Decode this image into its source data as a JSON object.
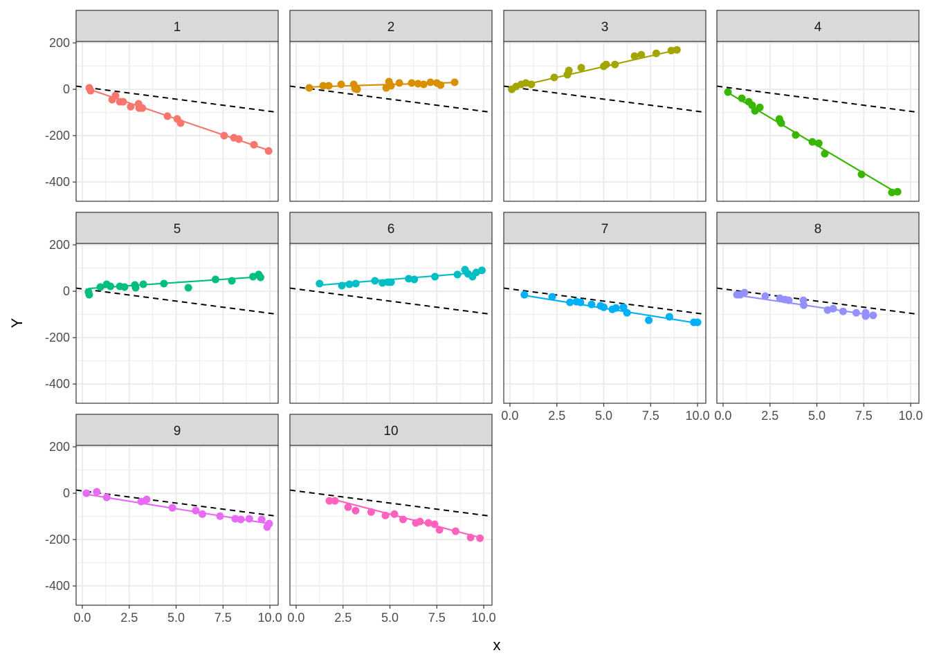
{
  "chart_data": {
    "type": "scatter",
    "xlabel": "x",
    "ylabel": "Y",
    "xlim": [
      -0.33,
      10.44
    ],
    "ylim": [
      -483,
      206
    ],
    "xticks": [
      "0.0",
      "2.5",
      "5.0",
      "7.5",
      "10.0"
    ],
    "xtick_values": [
      0,
      2.5,
      5,
      7.5,
      10
    ],
    "yticks": [
      "200",
      "0",
      "-200",
      "-400"
    ],
    "ytick_values": [
      200,
      0,
      -200,
      -400
    ],
    "grid": true,
    "reference_line": {
      "style": "dashed",
      "color": "#000000",
      "intercept": 10,
      "slope": -10.5
    },
    "panels": [
      {
        "label": "1",
        "color": "#F8766D",
        "fit": {
          "intercept": 10,
          "slope": -27.5
        },
        "points": [
          [
            0.37,
            6
          ],
          [
            0.44,
            -6
          ],
          [
            1.59,
            -45
          ],
          [
            1.77,
            -27
          ],
          [
            2.0,
            -54
          ],
          [
            2.18,
            -54
          ],
          [
            2.58,
            -75
          ],
          [
            3.0,
            -63
          ],
          [
            3.03,
            -81
          ],
          [
            3.2,
            -81
          ],
          [
            4.54,
            -116
          ],
          [
            5.06,
            -128
          ],
          [
            5.24,
            -146
          ],
          [
            7.56,
            -200
          ],
          [
            8.08,
            -209
          ],
          [
            8.34,
            -215
          ],
          [
            9.15,
            -239
          ],
          [
            9.93,
            -266
          ]
        ]
      },
      {
        "label": "2",
        "color": "#D89000",
        "fit": {
          "intercept": 8,
          "slope": 2.5
        },
        "points": [
          [
            0.7,
            6
          ],
          [
            1.44,
            15
          ],
          [
            1.74,
            15
          ],
          [
            2.4,
            21
          ],
          [
            3.07,
            21
          ],
          [
            3.14,
            3
          ],
          [
            3.25,
            0
          ],
          [
            4.8,
            6
          ],
          [
            4.95,
            33
          ],
          [
            5.06,
            15
          ],
          [
            5.5,
            27
          ],
          [
            6.16,
            27
          ],
          [
            6.5,
            24
          ],
          [
            6.8,
            21
          ],
          [
            7.16,
            30
          ],
          [
            7.5,
            27
          ],
          [
            7.7,
            18
          ],
          [
            8.45,
            30
          ]
        ]
      },
      {
        "label": "3",
        "color": "#A3A500",
        "fit": {
          "intercept": 5,
          "slope": 18.5
        },
        "points": [
          [
            0.1,
            0
          ],
          [
            0.33,
            12
          ],
          [
            0.6,
            21
          ],
          [
            0.85,
            27
          ],
          [
            1.14,
            21
          ],
          [
            2.36,
            51
          ],
          [
            3.06,
            63
          ],
          [
            3.14,
            81
          ],
          [
            3.8,
            93
          ],
          [
            5.0,
            99
          ],
          [
            5.13,
            107
          ],
          [
            5.6,
            107
          ],
          [
            6.64,
            143
          ],
          [
            7.0,
            149
          ],
          [
            7.8,
            155
          ],
          [
            8.6,
            167
          ],
          [
            8.9,
            170
          ]
        ]
      },
      {
        "label": "4",
        "color": "#39B600",
        "fit": {
          "intercept": -2,
          "slope": -48
        },
        "points": [
          [
            0.26,
            -12
          ],
          [
            1.0,
            -39
          ],
          [
            1.37,
            -54
          ],
          [
            1.55,
            -69
          ],
          [
            1.7,
            -93
          ],
          [
            1.96,
            -78
          ],
          [
            3.0,
            -128
          ],
          [
            3.05,
            -140
          ],
          [
            3.1,
            -146
          ],
          [
            3.87,
            -197
          ],
          [
            4.76,
            -227
          ],
          [
            5.1,
            -233
          ],
          [
            5.42,
            -278
          ],
          [
            7.38,
            -367
          ],
          [
            9.0,
            -445
          ],
          [
            9.3,
            -442
          ]
        ]
      },
      {
        "label": "5",
        "color": "#00BF7D",
        "fit": {
          "intercept": 10,
          "slope": 5.5
        },
        "points": [
          [
            0.33,
            -3
          ],
          [
            0.37,
            -15
          ],
          [
            0.96,
            18
          ],
          [
            1.3,
            30
          ],
          [
            1.5,
            21
          ],
          [
            2.0,
            21
          ],
          [
            2.25,
            18
          ],
          [
            2.8,
            27
          ],
          [
            2.84,
            15
          ],
          [
            3.25,
            30
          ],
          [
            4.35,
            33
          ],
          [
            5.65,
            15
          ],
          [
            7.1,
            51
          ],
          [
            7.97,
            45
          ],
          [
            9.1,
            63
          ],
          [
            9.4,
            72
          ],
          [
            9.5,
            60
          ]
        ]
      },
      {
        "label": "6",
        "color": "#00BFC4",
        "fit": {
          "intercept": 18,
          "slope": 6.5
        },
        "points": [
          [
            1.25,
            33
          ],
          [
            2.44,
            24
          ],
          [
            2.84,
            30
          ],
          [
            3.18,
            33
          ],
          [
            4.2,
            45
          ],
          [
            4.6,
            36
          ],
          [
            4.9,
            39
          ],
          [
            5.06,
            39
          ],
          [
            6.0,
            54
          ],
          [
            6.3,
            51
          ],
          [
            7.4,
            63
          ],
          [
            8.6,
            72
          ],
          [
            9.0,
            93
          ],
          [
            9.16,
            75
          ],
          [
            9.4,
            63
          ],
          [
            9.6,
            81
          ],
          [
            9.9,
            90
          ]
        ]
      },
      {
        "label": "7",
        "color": "#00B0F6",
        "fit": {
          "intercept": -8,
          "slope": -13
        },
        "points": [
          [
            0.77,
            -15
          ],
          [
            2.25,
            -24
          ],
          [
            3.2,
            -48
          ],
          [
            3.54,
            -45
          ],
          [
            3.76,
            -48
          ],
          [
            4.35,
            -57
          ],
          [
            4.83,
            -63
          ],
          [
            5.0,
            -69
          ],
          [
            5.46,
            -78
          ],
          [
            5.65,
            -72
          ],
          [
            6.05,
            -69
          ],
          [
            6.24,
            -93
          ],
          [
            7.4,
            -125
          ],
          [
            8.5,
            -110
          ],
          [
            9.8,
            -134
          ],
          [
            10.0,
            -134
          ]
        ]
      },
      {
        "label": "8",
        "color": "#9590FF",
        "fit": {
          "intercept": -8,
          "slope": -12
        },
        "points": [
          [
            0.74,
            -15
          ],
          [
            0.92,
            -15
          ],
          [
            1.14,
            -6
          ],
          [
            2.25,
            -21
          ],
          [
            3.03,
            -30
          ],
          [
            3.3,
            -36
          ],
          [
            3.5,
            -39
          ],
          [
            4.28,
            -39
          ],
          [
            4.3,
            -60
          ],
          [
            5.57,
            -81
          ],
          [
            5.87,
            -75
          ],
          [
            6.4,
            -87
          ],
          [
            7.1,
            -93
          ],
          [
            7.6,
            -93
          ],
          [
            7.6,
            -107
          ],
          [
            8.0,
            -104
          ]
        ]
      },
      {
        "label": "9",
        "color": "#E76BF3",
        "fit": {
          "intercept": -2,
          "slope": -13
        },
        "points": [
          [
            0.22,
            0
          ],
          [
            0.77,
            6
          ],
          [
            1.3,
            -18
          ],
          [
            3.14,
            -36
          ],
          [
            3.43,
            -27
          ],
          [
            4.8,
            -63
          ],
          [
            6.05,
            -75
          ],
          [
            6.4,
            -90
          ],
          [
            7.34,
            -99
          ],
          [
            8.15,
            -110
          ],
          [
            8.45,
            -113
          ],
          [
            8.9,
            -110
          ],
          [
            9.56,
            -113
          ],
          [
            9.85,
            -146
          ],
          [
            9.96,
            -131
          ]
        ]
      },
      {
        "label": "10",
        "color": "#FF62BC",
        "fit": {
          "intercept": 15,
          "slope": -21
        },
        "points": [
          [
            1.77,
            -33
          ],
          [
            2.07,
            -33
          ],
          [
            2.77,
            -60
          ],
          [
            3.17,
            -75
          ],
          [
            4.0,
            -81
          ],
          [
            4.76,
            -96
          ],
          [
            5.24,
            -90
          ],
          [
            5.7,
            -113
          ],
          [
            6.38,
            -128
          ],
          [
            6.6,
            -122
          ],
          [
            7.05,
            -128
          ],
          [
            7.38,
            -134
          ],
          [
            7.64,
            -158
          ],
          [
            8.5,
            -164
          ],
          [
            9.3,
            -191
          ],
          [
            9.8,
            -194
          ]
        ]
      }
    ]
  }
}
